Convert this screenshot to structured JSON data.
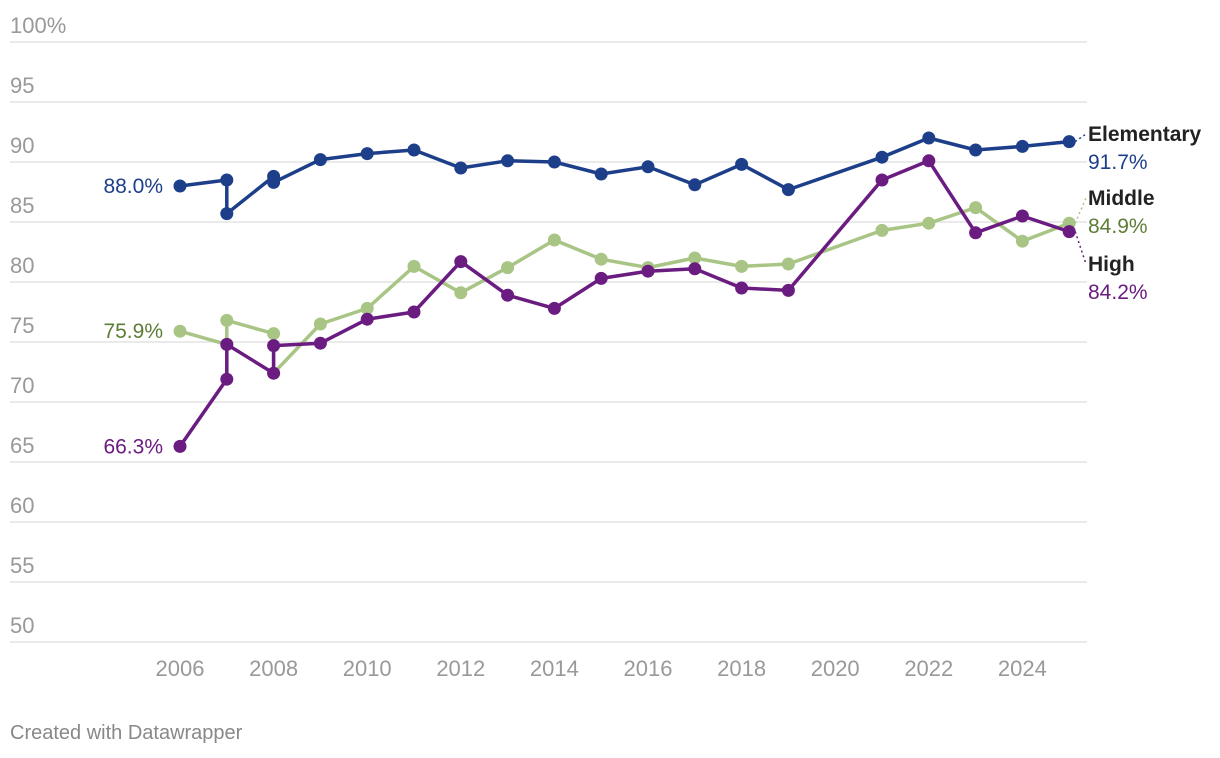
{
  "chart_data": {
    "type": "line",
    "ylim": [
      50,
      100
    ],
    "xlim": [
      2004.0,
      2025.4
    ],
    "y_ticks": [
      {
        "value": 100,
        "label": "100%"
      },
      {
        "value": 95,
        "label": "95"
      },
      {
        "value": 90,
        "label": "90"
      },
      {
        "value": 85,
        "label": "85"
      },
      {
        "value": 80,
        "label": "80"
      },
      {
        "value": 75,
        "label": "75"
      },
      {
        "value": 70,
        "label": "70"
      },
      {
        "value": 65,
        "label": "65"
      },
      {
        "value": 60,
        "label": "60"
      },
      {
        "value": 55,
        "label": "55"
      },
      {
        "value": 50,
        "label": "50"
      }
    ],
    "x_ticks": [
      {
        "value": 2006,
        "label": "2006"
      },
      {
        "value": 2008,
        "label": "2008"
      },
      {
        "value": 2010,
        "label": "2010"
      },
      {
        "value": 2012,
        "label": "2012"
      },
      {
        "value": 2014,
        "label": "2014"
      },
      {
        "value": 2016,
        "label": "2016"
      },
      {
        "value": 2018,
        "label": "2018"
      },
      {
        "value": 2020,
        "label": "2020"
      },
      {
        "value": 2022,
        "label": "2022"
      },
      {
        "value": 2024,
        "label": "2024"
      }
    ],
    "grid": true,
    "series": [
      {
        "name": "Elementary",
        "color": "#1d3f8a",
        "start_label": "88.0%",
        "end_label": "91.7%",
        "points": [
          {
            "x": 2006,
            "y": 88.0
          },
          {
            "x": 2007,
            "y": 88.5
          },
          {
            "x": 2007,
            "y": 85.7
          },
          {
            "x": 2008,
            "y": 88.8
          },
          {
            "x": 2008,
            "y": 88.3
          },
          {
            "x": 2009,
            "y": 90.2
          },
          {
            "x": 2010,
            "y": 90.7
          },
          {
            "x": 2011,
            "y": 91.0
          },
          {
            "x": 2012,
            "y": 89.5
          },
          {
            "x": 2013,
            "y": 90.1
          },
          {
            "x": 2014,
            "y": 90.0
          },
          {
            "x": 2015,
            "y": 89.0
          },
          {
            "x": 2016,
            "y": 89.6
          },
          {
            "x": 2017,
            "y": 88.1
          },
          {
            "x": 2018,
            "y": 89.8
          },
          {
            "x": 2019,
            "y": 87.7
          },
          {
            "x": 2021,
            "y": 90.4
          },
          {
            "x": 2022,
            "y": 92.0
          },
          {
            "x": 2023,
            "y": 91.0
          },
          {
            "x": 2024,
            "y": 91.3
          },
          {
            "x": 2025,
            "y": 91.7
          }
        ]
      },
      {
        "name": "Middle",
        "color": "#a9c585",
        "start_label": "75.9%",
        "label_color": "#5d7d36",
        "end_label": "84.9%",
        "points": [
          {
            "x": 2006,
            "y": 75.9
          },
          {
            "x": 2007,
            "y": 74.8
          },
          {
            "x": 2007,
            "y": 76.8
          },
          {
            "x": 2008,
            "y": 75.7
          },
          {
            "x": 2008,
            "y": 72.4
          },
          {
            "x": 2009,
            "y": 76.5
          },
          {
            "x": 2010,
            "y": 77.8
          },
          {
            "x": 2011,
            "y": 81.3
          },
          {
            "x": 2012,
            "y": 79.1
          },
          {
            "x": 2013,
            "y": 81.2
          },
          {
            "x": 2014,
            "y": 83.5
          },
          {
            "x": 2015,
            "y": 81.9
          },
          {
            "x": 2016,
            "y": 81.2
          },
          {
            "x": 2017,
            "y": 82.0
          },
          {
            "x": 2018,
            "y": 81.3
          },
          {
            "x": 2019,
            "y": 81.5
          },
          {
            "x": 2021,
            "y": 84.3
          },
          {
            "x": 2022,
            "y": 84.9
          },
          {
            "x": 2023,
            "y": 86.2
          },
          {
            "x": 2024,
            "y": 83.4
          },
          {
            "x": 2025,
            "y": 84.9
          }
        ]
      },
      {
        "name": "High",
        "color": "#6a1c80",
        "start_label": "66.3%",
        "end_label": "84.2%",
        "points": [
          {
            "x": 2006,
            "y": 66.3
          },
          {
            "x": 2007,
            "y": 71.9
          },
          {
            "x": 2007,
            "y": 74.8
          },
          {
            "x": 2008,
            "y": 72.4
          },
          {
            "x": 2008,
            "y": 74.7
          },
          {
            "x": 2009,
            "y": 74.9
          },
          {
            "x": 2010,
            "y": 76.9
          },
          {
            "x": 2011,
            "y": 77.5
          },
          {
            "x": 2012,
            "y": 81.7
          },
          {
            "x": 2013,
            "y": 78.9
          },
          {
            "x": 2014,
            "y": 77.8
          },
          {
            "x": 2015,
            "y": 80.3
          },
          {
            "x": 2016,
            "y": 80.9
          },
          {
            "x": 2017,
            "y": 81.1
          },
          {
            "x": 2018,
            "y": 79.5
          },
          {
            "x": 2019,
            "y": 79.3
          },
          {
            "x": 2021,
            "y": 88.5
          },
          {
            "x": 2022,
            "y": 90.1
          },
          {
            "x": 2023,
            "y": 84.1
          },
          {
            "x": 2024,
            "y": 85.5
          },
          {
            "x": 2025,
            "y": 84.2
          }
        ]
      }
    ]
  },
  "footer": {
    "credit": "Created with Datawrapper"
  }
}
